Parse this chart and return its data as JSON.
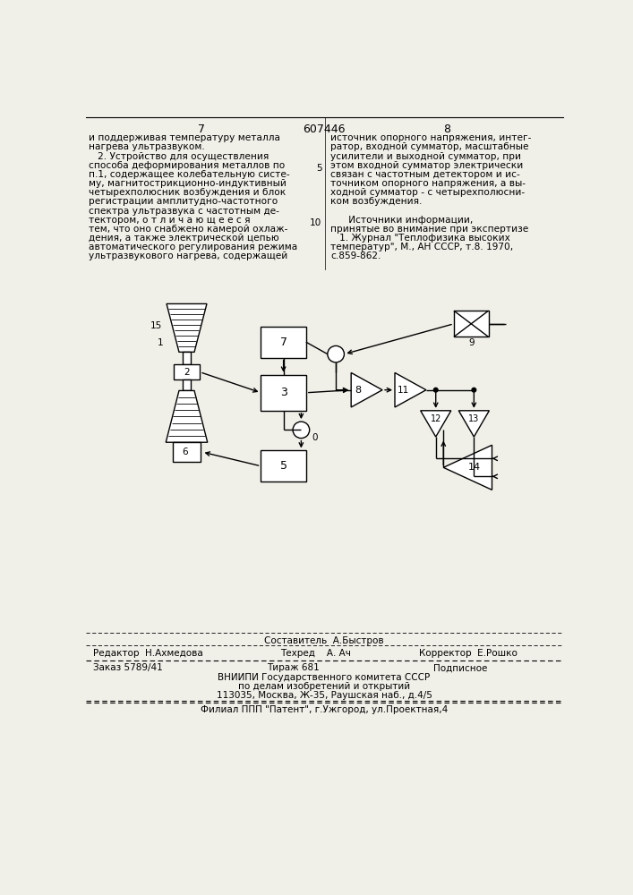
{
  "page_number_left": "7",
  "page_number_center": "607446",
  "page_number_right": "8",
  "left_col_text": [
    "и поддерживая температуру металла",
    "нагрева ультразвуком.",
    "   2. Устройство для осуществления",
    "способа деформирования металлов по",
    "п.1, содержащее колебательную систе-",
    "му, магнитострикционно-индуктивный",
    "четырехполюсник возбуждения и блок",
    "регистрации амплитудно-частотного",
    "спектра ультразвука с частотным де-",
    "тектором, о т л и ч а ю щ е е с я",
    "тем, что оно снабжено камерой охлаж-",
    "дения, а также электрической цепью",
    "автоматического регулирования режима",
    "ультразвукового нагрева, содержащей"
  ],
  "right_col_text": [
    "источник опорного напряжения, интег-",
    "ратор, входной сумматор, масштабные",
    "усилители и выходной сумматор, при",
    "этом входной сумматор электрически",
    "связан с частотным детектором и ис-",
    "точником опорного напряжения, а вы-",
    "ходной сумматор - с четырехполюсни-",
    "ком возбуждения.",
    "",
    "      Источники информации,",
    "принятые во внимание при экспертизе",
    "   1. Журнал \"Теплофизика высоких",
    "температур\", М., АН СССР, т.8. 1970,",
    "с.859-862."
  ],
  "line_number_5": "5",
  "line_number_10": "10",
  "footer_sestavitel": "Составитель  А.Быстров",
  "footer_redaktor": "Редактор  Н.Ахмедова",
  "footer_tehred": "Техред    А. Ач",
  "footer_korrektor": "Корректор  Е.Рошко",
  "footer_zakaz": "Заказ 5789/41",
  "footer_tirazh": "Тираж 681",
  "footer_podpisnoe": "Подписное",
  "footer_vnipi": "ВНИИПИ Государственного комитета СССР",
  "footer_po_delam": "по делам изобретений и открытий",
  "footer_address": "113035, Москва, Ж-35, Раушская наб., д.4/5",
  "footer_filial": "Филиал ППП \"Патент\", г.Ужгород, ул.Проектная,4",
  "bg_color": "#f0efe8"
}
